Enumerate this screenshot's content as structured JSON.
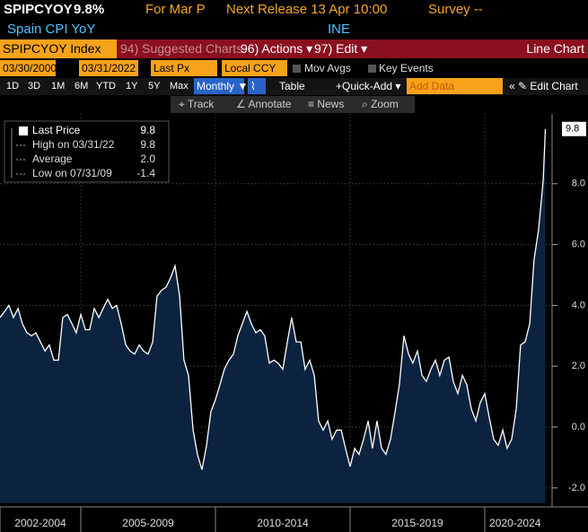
{
  "header": {
    "ticker": "SPIPCYOY",
    "last": "9.8%",
    "period": "For Mar P",
    "next_release": "Next Release 13 Apr 10:00",
    "survey": "Survey --",
    "description": "Spain CPI YoY",
    "source": "INE"
  },
  "toolbar": {
    "security": "SPIPCYOY Index",
    "suggested": "94) Suggested Charts",
    "actions": "96) Actions",
    "edit": "97) Edit",
    "view": "Line Chart"
  },
  "settings": {
    "start": "03/30/2000",
    "end": "03/31/2022",
    "field": "Last Px",
    "currency": "Local CCY",
    "mov_avgs": "Mov Avgs",
    "key_events": "Key Events"
  },
  "controls": {
    "periods": [
      "1D",
      "3D",
      "1M",
      "6M",
      "YTD",
      "1Y",
      "5Y",
      "Max"
    ],
    "frequency": "Monthly",
    "table": "Table",
    "quick_add": "Quick-Add",
    "add_data": "Add Data",
    "edit_chart": "Edit Chart"
  },
  "tools": [
    "Track",
    "Annotate",
    "News",
    "Zoom"
  ],
  "chart_data": {
    "type": "area",
    "series": [
      {
        "name": "Last Price",
        "color": "#ffffff",
        "fill": "#0c2340",
        "x": [
          2002.0,
          2002.17,
          2002.33,
          2002.5,
          2002.67,
          2002.83,
          2003.0,
          2003.17,
          2003.33,
          2003.5,
          2003.67,
          2003.83,
          2004.0,
          2004.17,
          2004.33,
          2004.5,
          2004.67,
          2004.83,
          2005.0,
          2005.17,
          2005.33,
          2005.5,
          2005.67,
          2005.83,
          2006.0,
          2006.17,
          2006.33,
          2006.5,
          2006.67,
          2006.83,
          2007.0,
          2007.17,
          2007.33,
          2007.5,
          2007.67,
          2007.83,
          2008.0,
          2008.17,
          2008.33,
          2008.5,
          2008.67,
          2008.83,
          2009.0,
          2009.17,
          2009.33,
          2009.5,
          2009.67,
          2009.83,
          2010.0,
          2010.17,
          2010.33,
          2010.5,
          2010.67,
          2010.83,
          2011.0,
          2011.17,
          2011.33,
          2011.5,
          2011.67,
          2011.83,
          2012.0,
          2012.17,
          2012.33,
          2012.5,
          2012.67,
          2012.83,
          2013.0,
          2013.17,
          2013.33,
          2013.5,
          2013.67,
          2013.83,
          2014.0,
          2014.17,
          2014.33,
          2014.5,
          2014.67,
          2014.83,
          2015.0,
          2015.17,
          2015.33,
          2015.5,
          2015.67,
          2015.83,
          2016.0,
          2016.17,
          2016.33,
          2016.5,
          2016.67,
          2016.83,
          2017.0,
          2017.17,
          2017.33,
          2017.5,
          2017.67,
          2017.83,
          2018.0,
          2018.17,
          2018.33,
          2018.5,
          2018.67,
          2018.83,
          2019.0,
          2019.17,
          2019.33,
          2019.5,
          2019.67,
          2019.83,
          2020.0,
          2020.17,
          2020.33,
          2020.5,
          2020.67,
          2020.83,
          2021.0,
          2021.17,
          2021.33,
          2021.5,
          2021.67,
          2021.83,
          2022.0,
          2022.17,
          2022.25
        ],
        "values": [
          3.6,
          3.8,
          4.0,
          3.6,
          3.9,
          3.4,
          3.1,
          3.0,
          3.1,
          2.8,
          2.5,
          2.7,
          2.2,
          2.2,
          3.6,
          3.7,
          3.4,
          3.1,
          3.7,
          3.2,
          3.2,
          3.9,
          3.6,
          3.9,
          4.2,
          3.9,
          4.0,
          3.4,
          2.7,
          2.5,
          2.4,
          2.7,
          2.5,
          2.4,
          2.8,
          4.3,
          4.5,
          4.6,
          4.9,
          5.3,
          4.3,
          2.2,
          1.7,
          -0.1,
          -0.9,
          -1.4,
          -0.6,
          0.5,
          0.9,
          1.4,
          1.9,
          2.2,
          2.4,
          3.0,
          3.4,
          3.8,
          3.4,
          3.1,
          3.2,
          3.0,
          2.1,
          2.2,
          2.1,
          1.9,
          2.8,
          3.6,
          2.8,
          2.8,
          1.9,
          2.2,
          1.7,
          0.2,
          -0.1,
          0.2,
          -0.4,
          -0.1,
          -0.1,
          -0.7,
          -1.3,
          -0.7,
          -0.9,
          -0.4,
          0.2,
          -0.7,
          0.2,
          -0.7,
          -0.9,
          -0.4,
          0.5,
          1.4,
          3.0,
          2.4,
          2.1,
          2.5,
          1.7,
          1.5,
          1.9,
          2.2,
          1.7,
          2.2,
          2.3,
          1.5,
          1.1,
          1.7,
          1.4,
          0.6,
          0.2,
          0.8,
          1.1,
          0.3,
          -0.4,
          -0.6,
          -0.1,
          -0.7,
          -0.4,
          0.6,
          2.7,
          2.8,
          3.4,
          5.5,
          6.5,
          8.1,
          9.8
        ]
      }
    ],
    "stats": [
      {
        "label": "High on 03/31/22",
        "value": "9.8"
      },
      {
        "label": "Average",
        "value": "2.0"
      },
      {
        "label": "Low on 07/31/09",
        "value": "-1.4"
      }
    ],
    "xlim": [
      2002,
      2022.25
    ],
    "xticks": [
      {
        "value": 2002,
        "label": "2002-2004"
      },
      {
        "value": 2005,
        "label": "2005-2009"
      },
      {
        "value": 2010,
        "label": "2010-2014"
      },
      {
        "value": 2015,
        "label": "2015-2019"
      },
      {
        "value": 2020,
        "label": "2020-2024"
      }
    ],
    "ylim": [
      -2.5,
      10.3
    ],
    "yticks": [
      {
        "value": -2,
        "label": "-2.0"
      },
      {
        "value": 0,
        "label": "0.0"
      },
      {
        "value": 2,
        "label": "2.0"
      },
      {
        "value": 4,
        "label": "4.0"
      },
      {
        "value": 6,
        "label": "6.0"
      },
      {
        "value": 8,
        "label": "8.0"
      }
    ],
    "grid": true
  }
}
